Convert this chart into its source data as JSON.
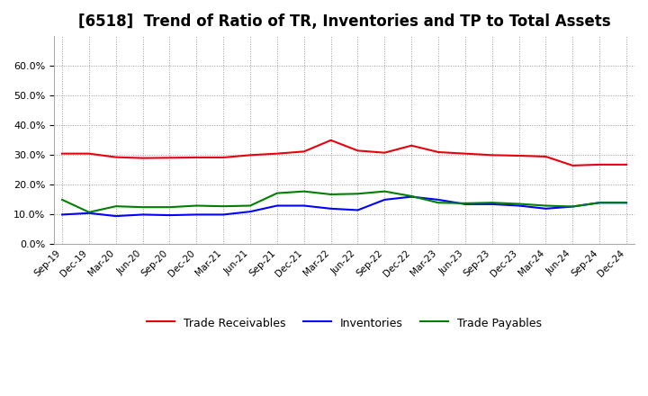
{
  "title": "[6518]  Trend of Ratio of TR, Inventories and TP to Total Assets",
  "x_labels": [
    "Sep-19",
    "Dec-19",
    "Mar-20",
    "Jun-20",
    "Sep-20",
    "Dec-20",
    "Mar-21",
    "Jun-21",
    "Sep-21",
    "Dec-21",
    "Mar-22",
    "Jun-22",
    "Sep-22",
    "Dec-22",
    "Mar-23",
    "Jun-23",
    "Sep-23",
    "Dec-23",
    "Mar-24",
    "Jun-24",
    "Sep-24",
    "Dec-24"
  ],
  "trade_receivables": [
    0.305,
    0.305,
    0.293,
    0.29,
    0.291,
    0.292,
    0.292,
    0.3,
    0.305,
    0.312,
    0.35,
    0.315,
    0.308,
    0.332,
    0.31,
    0.305,
    0.3,
    0.298,
    0.295,
    0.265,
    0.268,
    0.268
  ],
  "inventories": [
    0.1,
    0.105,
    0.095,
    0.1,
    0.098,
    0.1,
    0.1,
    0.11,
    0.13,
    0.13,
    0.12,
    0.115,
    0.15,
    0.16,
    0.15,
    0.135,
    0.135,
    0.13,
    0.12,
    0.127,
    0.14,
    0.14
  ],
  "trade_payables": [
    0.15,
    0.108,
    0.128,
    0.125,
    0.125,
    0.13,
    0.128,
    0.13,
    0.172,
    0.178,
    0.168,
    0.17,
    0.178,
    0.162,
    0.14,
    0.138,
    0.14,
    0.136,
    0.13,
    0.127,
    0.14,
    0.14
  ],
  "tr_color": "#e8000d",
  "inv_color": "#0000ff",
  "tp_color": "#008000",
  "background_color": "#ffffff",
  "grid_color": "#999999",
  "ylim": [
    0.0,
    0.7
  ],
  "yticks": [
    0.0,
    0.1,
    0.2,
    0.3,
    0.4,
    0.5,
    0.6
  ],
  "title_fontsize": 12,
  "legend_labels": [
    "Trade Receivables",
    "Inventories",
    "Trade Payables"
  ]
}
